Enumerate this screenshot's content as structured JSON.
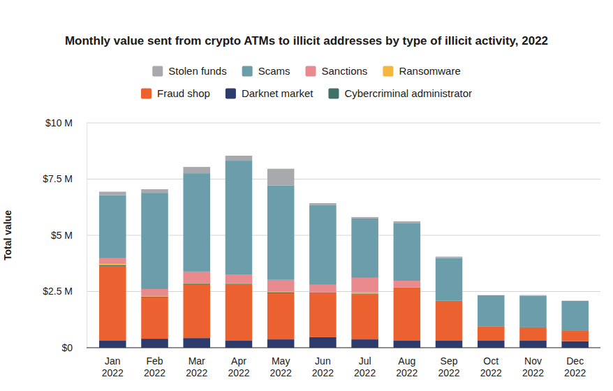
{
  "chart_data": {
    "type": "bar",
    "stacked": true,
    "grid": true,
    "legend": "top",
    "title": "Monthly value sent from crypto ATMs to illicit addresses by type of illicit activity, 2022",
    "y_label": "Total value",
    "categories": [
      "Jan 2022",
      "Feb 2022",
      "Mar 2022",
      "Apr 2022",
      "May 2022",
      "Jun 2022",
      "Jul 2022",
      "Aug 2022",
      "Sep 2022",
      "Oct 2022",
      "Nov 2022",
      "Dec 2022"
    ],
    "ylim": [
      0,
      10
    ],
    "yticks": [
      {
        "value": 0,
        "label": "$0"
      },
      {
        "value": 2.5,
        "label": "$2.5 M"
      },
      {
        "value": 5,
        "label": "$5 M"
      },
      {
        "value": 7.5,
        "label": "$7.5 M"
      },
      {
        "value": 10,
        "label": "$10 M"
      }
    ],
    "series": [
      {
        "name": "Stolen funds",
        "color": "#a7a9ac",
        "values": [
          0.16,
          0.16,
          0.28,
          0.22,
          0.74,
          0.09,
          0.06,
          0.09,
          0.06,
          0.01,
          0.03,
          0.01
        ]
      },
      {
        "name": "Scams",
        "color": "#6b9dab",
        "values": [
          2.8,
          4.28,
          4.37,
          5.06,
          4.2,
          3.54,
          2.64,
          2.55,
          1.9,
          1.38,
          1.39,
          1.31
        ]
      },
      {
        "name": "Sanctions",
        "color": "#e88a8e",
        "values": [
          0.25,
          0.32,
          0.53,
          0.4,
          0.53,
          0.34,
          0.65,
          0.3,
          0.0,
          0.0,
          0.0,
          0.0
        ]
      },
      {
        "name": "Ransomware",
        "color": "#f3b73f",
        "values": [
          0.05,
          0.02,
          0.01,
          0.01,
          0.02,
          0.01,
          0.05,
          0.0,
          0.0,
          0.0,
          0.0,
          0.0
        ]
      },
      {
        "name": "Fraud shop",
        "color": "#ec6130",
        "values": [
          3.32,
          1.84,
          2.37,
          2.52,
          2.05,
          1.95,
          2.02,
          2.36,
          1.77,
          0.62,
          0.59,
          0.46
        ]
      },
      {
        "name": "Darknet market",
        "color": "#2d3a6c",
        "values": [
          0.31,
          0.4,
          0.43,
          0.31,
          0.37,
          0.47,
          0.37,
          0.31,
          0.31,
          0.31,
          0.31,
          0.29
        ]
      },
      {
        "name": "Cybercriminal administrator",
        "color": "#3f7266",
        "values": [
          0.05,
          0.03,
          0.05,
          0.02,
          0.05,
          0.03,
          0.02,
          0.01,
          0.01,
          0.02,
          0.02,
          0.02
        ]
      }
    ]
  }
}
